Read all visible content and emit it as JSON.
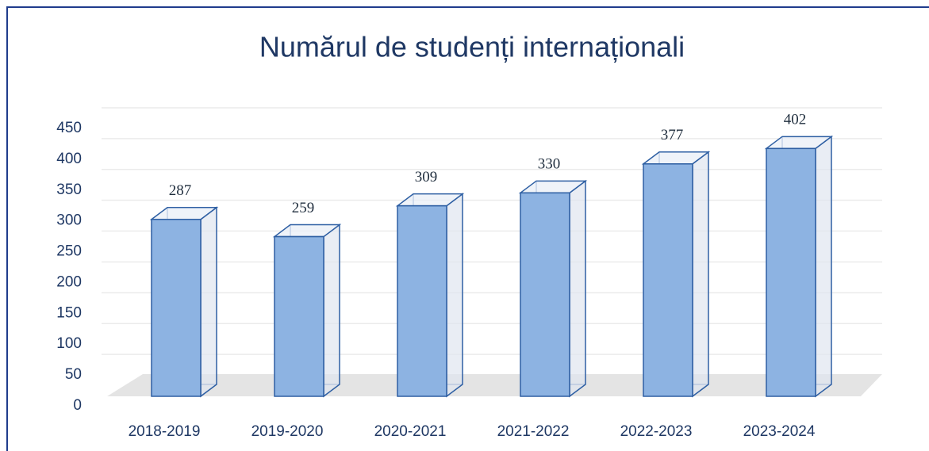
{
  "chart_data": {
    "type": "bar",
    "title": "Numărul de studenți internaționali",
    "categories": [
      "2018-2019",
      "2019-2020",
      "2020-2021",
      "2021-2022",
      "2022-2023",
      "2023-2024"
    ],
    "values": [
      287,
      259,
      309,
      330,
      377,
      402
    ],
    "color": "#8db3e2",
    "ylim": [
      0,
      450
    ],
    "yticks": [
      0,
      50,
      100,
      150,
      200,
      250,
      300,
      350,
      400,
      450
    ],
    "grid": true
  }
}
